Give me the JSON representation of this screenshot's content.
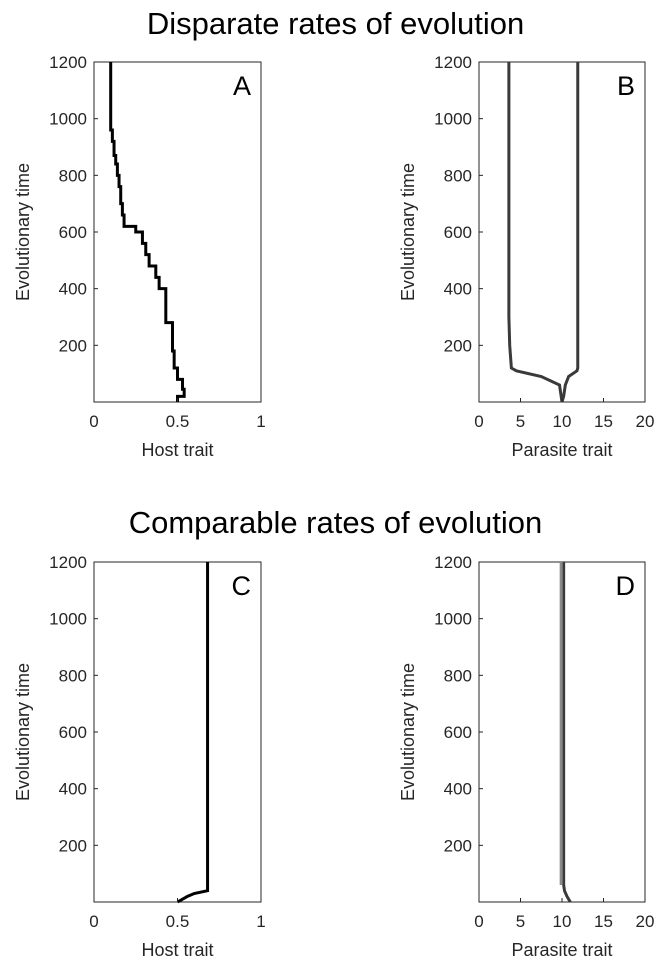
{
  "titles": {
    "top": "Disparate rates of evolution",
    "bottom": "Comparable rates of evolution"
  },
  "chart_data": [
    {
      "type": "line",
      "panel": "A",
      "xlabel": "Host trait",
      "ylabel": "Evolutionary time",
      "xlim": [
        0,
        1
      ],
      "ylim": [
        0,
        1200
      ],
      "xticks": [
        0,
        0.5,
        1
      ],
      "xtick_labels": [
        "0",
        "0.5",
        "1"
      ],
      "yticks": [
        200,
        400,
        600,
        800,
        1000,
        1200
      ],
      "ytick_labels": [
        "200",
        "400",
        "600",
        "800",
        "1000",
        "1200"
      ],
      "grid": false,
      "series": [
        {
          "color": "#000000",
          "points": [
            [
              0.5,
              0
            ],
            [
              0.5,
              20
            ],
            [
              0.54,
              20
            ],
            [
              0.54,
              45
            ],
            [
              0.53,
              45
            ],
            [
              0.53,
              80
            ],
            [
              0.5,
              80
            ],
            [
              0.5,
              120
            ],
            [
              0.48,
              120
            ],
            [
              0.48,
              180
            ],
            [
              0.47,
              180
            ],
            [
              0.47,
              280
            ],
            [
              0.43,
              280
            ],
            [
              0.43,
              400
            ],
            [
              0.39,
              400
            ],
            [
              0.39,
              440
            ],
            [
              0.37,
              440
            ],
            [
              0.37,
              480
            ],
            [
              0.33,
              480
            ],
            [
              0.33,
              520
            ],
            [
              0.31,
              520
            ],
            [
              0.31,
              560
            ],
            [
              0.29,
              560
            ],
            [
              0.29,
              600
            ],
            [
              0.25,
              600
            ],
            [
              0.25,
              620
            ],
            [
              0.18,
              620
            ],
            [
              0.18,
              660
            ],
            [
              0.17,
              660
            ],
            [
              0.17,
              700
            ],
            [
              0.16,
              700
            ],
            [
              0.16,
              760
            ],
            [
              0.15,
              760
            ],
            [
              0.15,
              800
            ],
            [
              0.14,
              800
            ],
            [
              0.14,
              840
            ],
            [
              0.13,
              840
            ],
            [
              0.13,
              870
            ],
            [
              0.12,
              870
            ],
            [
              0.12,
              920
            ],
            [
              0.11,
              920
            ],
            [
              0.11,
              960
            ],
            [
              0.1,
              960
            ],
            [
              0.1,
              1200
            ]
          ]
        }
      ]
    },
    {
      "type": "line",
      "panel": "B",
      "xlabel": "Parasite trait",
      "ylabel": "Evolutionary time",
      "xlim": [
        0,
        20
      ],
      "ylim": [
        0,
        1200
      ],
      "xticks": [
        0,
        5,
        10,
        15,
        20
      ],
      "xtick_labels": [
        "0",
        "5",
        "10",
        "15",
        "20"
      ],
      "yticks": [
        200,
        400,
        600,
        800,
        1000,
        1200
      ],
      "ytick_labels": [
        "200",
        "400",
        "600",
        "800",
        "1000",
        "1200"
      ],
      "grid": false,
      "series": [
        {
          "color": "#3a3a3a",
          "points": [
            [
              10.0,
              0
            ],
            [
              9.9,
              20
            ],
            [
              9.7,
              60
            ],
            [
              7.5,
              90
            ],
            [
              4.5,
              110
            ],
            [
              3.9,
              120
            ],
            [
              3.7,
              200
            ],
            [
              3.6,
              300
            ],
            [
              3.6,
              1200
            ]
          ]
        },
        {
          "color": "#3a3a3a",
          "points": [
            [
              10.0,
              0
            ],
            [
              10.2,
              20
            ],
            [
              10.4,
              60
            ],
            [
              10.8,
              90
            ],
            [
              11.8,
              110
            ],
            [
              11.9,
              120
            ],
            [
              11.9,
              200
            ],
            [
              11.9,
              1200
            ]
          ]
        }
      ]
    },
    {
      "type": "line",
      "panel": "C",
      "xlabel": "Host trait",
      "ylabel": "Evolutionary time",
      "xlim": [
        0,
        1
      ],
      "ylim": [
        0,
        1200
      ],
      "xticks": [
        0,
        0.5,
        1
      ],
      "xtick_labels": [
        "0",
        "0.5",
        "1"
      ],
      "yticks": [
        200,
        400,
        600,
        800,
        1000,
        1200
      ],
      "ytick_labels": [
        "200",
        "400",
        "600",
        "800",
        "1000",
        "1200"
      ],
      "grid": false,
      "series": [
        {
          "color": "#000000",
          "points": [
            [
              0.5,
              0
            ],
            [
              0.53,
              10
            ],
            [
              0.56,
              20
            ],
            [
              0.6,
              30
            ],
            [
              0.68,
              40
            ],
            [
              0.68,
              1200
            ]
          ]
        }
      ]
    },
    {
      "type": "line",
      "panel": "D",
      "xlabel": "Parasite trait",
      "ylabel": "Evolutionary time",
      "xlim": [
        0,
        20
      ],
      "ylim": [
        0,
        1200
      ],
      "xticks": [
        0,
        5,
        10,
        15,
        20
      ],
      "xtick_labels": [
        "0",
        "5",
        "10",
        "15",
        "20"
      ],
      "yticks": [
        200,
        400,
        600,
        800,
        1000,
        1200
      ],
      "ytick_labels": [
        "200",
        "400",
        "600",
        "800",
        "1000",
        "1200"
      ],
      "grid": false,
      "series": [
        {
          "color": "#3a3a3a",
          "points": [
            [
              11.0,
              0
            ],
            [
              10.6,
              20
            ],
            [
              10.3,
              40
            ],
            [
              10.2,
              60
            ],
            [
              10.2,
              1200
            ]
          ]
        },
        {
          "color": "#8a8a8a",
          "points": [
            [
              9.9,
              60
            ],
            [
              9.9,
              1200
            ]
          ]
        }
      ]
    }
  ]
}
